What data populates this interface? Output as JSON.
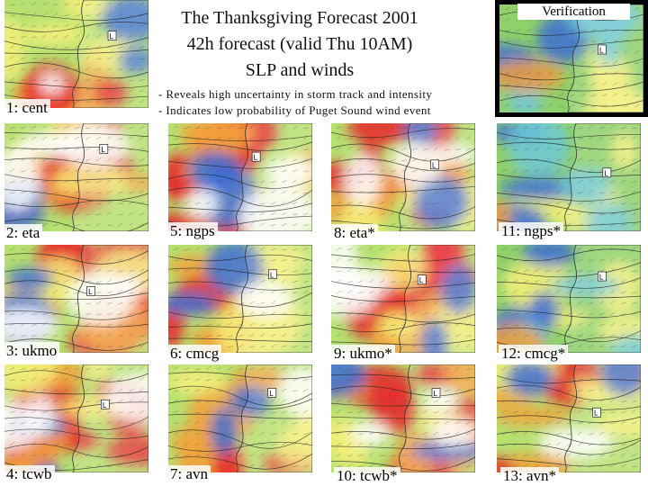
{
  "title": {
    "lines": [
      "The Thanksgiving Forecast 2001",
      "42h forecast (valid Thu 10AM)",
      "SLP and winds"
    ]
  },
  "notes": [
    "- Reveals high uncertainty in storm track and intensity",
    "- Indicates low probability of Puget Sound wind event"
  ],
  "verification_label": "Verification",
  "panels": [
    {
      "label": "1: cent",
      "style": "moderate"
    },
    {
      "label": "2: eta",
      "style": "strong"
    },
    {
      "label": "3: ukmo",
      "style": "strong"
    },
    {
      "label": "4: tcwb",
      "style": "strong"
    },
    {
      "label": "5: ngps",
      "style": "strong"
    },
    {
      "label": "6: cmcg",
      "style": "moderate"
    },
    {
      "label": "7: avn",
      "style": "moderate"
    },
    {
      "label": "8: eta*",
      "style": "strong"
    },
    {
      "label": "9: ukmo*",
      "style": "strong"
    },
    {
      "label": "10: tcwb*",
      "style": "strong"
    },
    {
      "label": "11: ngps*",
      "style": "calm"
    },
    {
      "label": "12: cmcg*",
      "style": "calm"
    },
    {
      "label": "13: avn*",
      "style": "moderate"
    }
  ],
  "colors": {
    "calm": "#9fd86a",
    "moderate": "#f3a13b",
    "strong": "#e8262a",
    "low": "#3d6fd6"
  }
}
